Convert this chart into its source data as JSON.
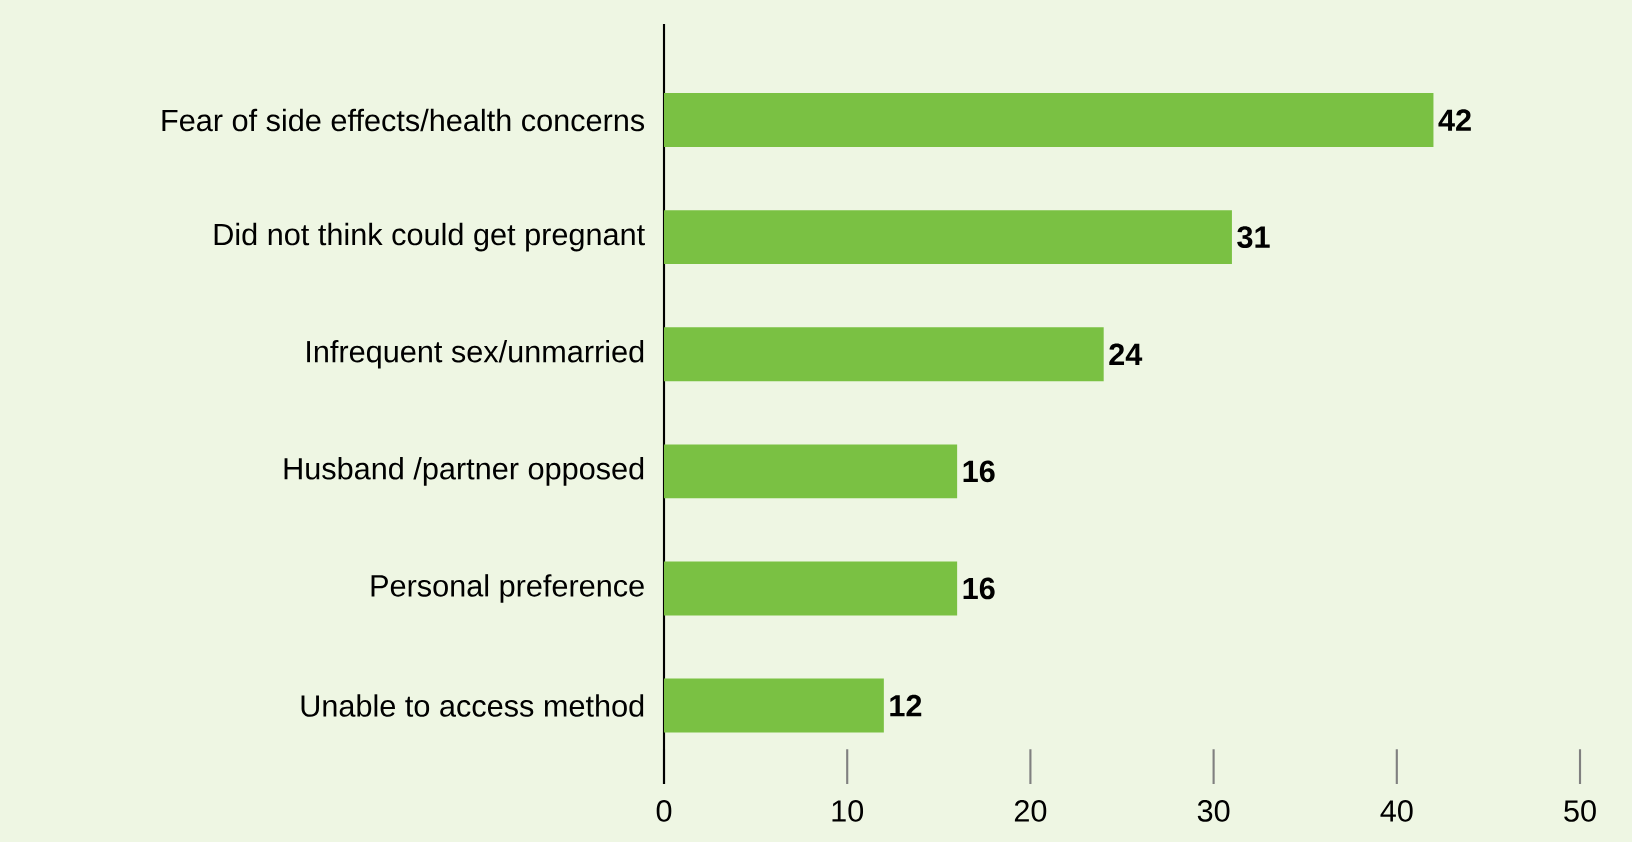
{
  "chart_data": {
    "type": "bar",
    "orientation": "horizontal",
    "categories": [
      "Fear of side effects/health concerns",
      "Did not think could get pregnant",
      "Infrequent sex/unmarried",
      "Husband /partner opposed",
      "Personal preference",
      "Unable to access method"
    ],
    "values": [
      42,
      31,
      24,
      16,
      16,
      12
    ],
    "color": "#7ac143",
    "xlim": [
      0,
      50
    ],
    "xticks": [
      0,
      10,
      20,
      30,
      40,
      50
    ],
    "data_labels": true
  }
}
